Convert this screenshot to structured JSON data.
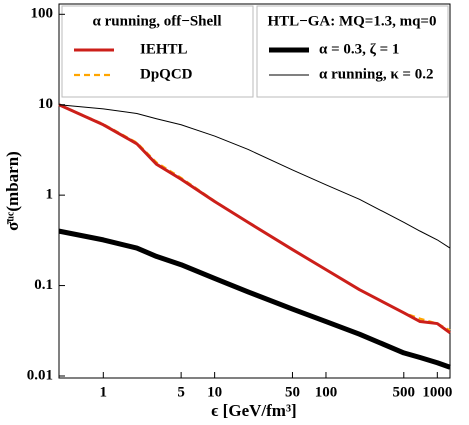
{
  "chart_data": {
    "type": "line",
    "xlabel": "ϵ [GeV/fm³]",
    "ylabel": "σ̄ᵘᶜ(mbarn)",
    "legend_titles": [
      "α running, off−Shell",
      "HTL−GA: MQ=1.3, mq=0"
    ],
    "x": [
      0.4,
      1,
      2,
      3,
      5,
      10,
      20,
      50,
      100,
      200,
      500,
      700,
      1000,
      1300
    ],
    "series": [
      {
        "name": "IEHTL",
        "color": "#cc1f1a",
        "linewidth": 3,
        "dashed": false,
        "values": [
          10,
          6,
          3.7,
          2.2,
          1.5,
          0.85,
          0.5,
          0.25,
          0.15,
          0.09,
          0.05,
          0.04,
          0.038,
          0.03
        ]
      },
      {
        "name": "DpQCD",
        "color": "#ffa500",
        "linewidth": 2.2,
        "dashed": true,
        "values": [
          10,
          6.1,
          3.8,
          2.3,
          1.55,
          0.86,
          0.5,
          0.25,
          0.15,
          0.09,
          0.05,
          0.043,
          0.038,
          0.032
        ]
      },
      {
        "name": "α = 0.3, ζ = 1",
        "color": "#000000",
        "linewidth": 5,
        "dashed": false,
        "values": [
          0.4,
          0.32,
          0.26,
          0.21,
          0.17,
          0.12,
          0.085,
          0.055,
          0.04,
          0.029,
          0.018,
          0.016,
          0.014,
          0.0125
        ]
      },
      {
        "name": "α running, κ = 0.2",
        "color": "#000000",
        "linewidth": 1,
        "dashed": false,
        "values": [
          10,
          9,
          8,
          7,
          6,
          4.5,
          3.2,
          1.9,
          1.3,
          0.9,
          0.5,
          0.4,
          0.32,
          0.26
        ]
      }
    ],
    "xlog": true,
    "ylog": true,
    "xlim": [
      0.4,
      1300
    ],
    "ylim": [
      0.0095,
      130
    ],
    "xticks": [
      1,
      5,
      10,
      50,
      100,
      500,
      1000
    ],
    "yticks": [
      0.01,
      0.1,
      1,
      10,
      100
    ]
  }
}
